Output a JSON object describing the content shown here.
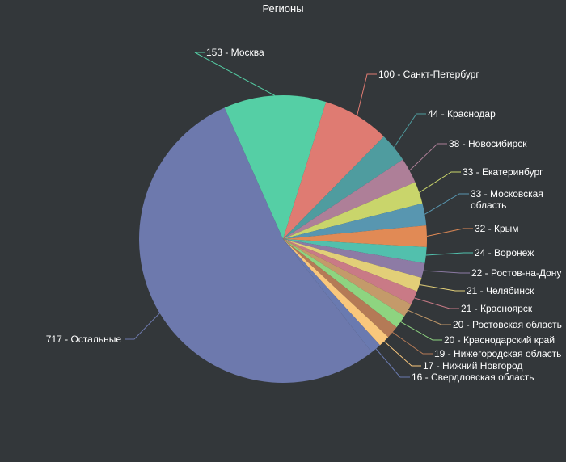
{
  "chart_data": {
    "type": "pie",
    "title": "Регионы",
    "slices": [
      {
        "label": "Москва",
        "value": 153,
        "color": "#55cfa5"
      },
      {
        "label": "Санкт-Петербург",
        "value": 100,
        "color": "#df7b72"
      },
      {
        "label": "Краснодар",
        "value": 44,
        "color": "#4f9c9f"
      },
      {
        "label": "Новосибирск",
        "value": 38,
        "color": "#ae7f98"
      },
      {
        "label": "Екатеринбург",
        "value": 33,
        "color": "#c9d56b"
      },
      {
        "label": "Московская область",
        "value": 33,
        "color": "#5896b0"
      },
      {
        "label": "Крым",
        "value": 32,
        "color": "#e18a55"
      },
      {
        "label": "Воронеж",
        "value": 24,
        "color": "#52c0ad"
      },
      {
        "label": "Ростов-на-Дону",
        "value": 22,
        "color": "#8d7ba5"
      },
      {
        "label": "Челябинск",
        "value": 21,
        "color": "#e2cf78"
      },
      {
        "label": "Красноярск",
        "value": 21,
        "color": "#c97a86"
      },
      {
        "label": "Ростовская область",
        "value": 20,
        "color": "#c49a6a"
      },
      {
        "label": "Краснодарский край",
        "value": 20,
        "color": "#8ed480"
      },
      {
        "label": "Нижегородская область",
        "value": 19,
        "color": "#b47a56"
      },
      {
        "label": "Нижний Новгород",
        "value": 17,
        "color": "#f9c77c"
      },
      {
        "label": "Свердловская область",
        "value": 16,
        "color": "#6a7ab0"
      },
      {
        "label": "Остальные",
        "value": 717,
        "color": "#6d79ad"
      }
    ],
    "legend": "none",
    "label_format": "value - label"
  }
}
